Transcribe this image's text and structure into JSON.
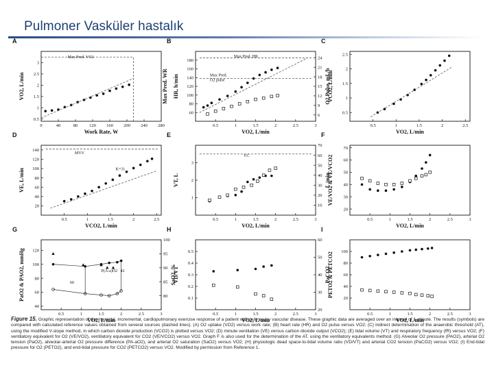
{
  "slide_title": "Pulmoner Vasküler hastalık",
  "caption": {
    "figure_label": "Figure 15.",
    "text": "Graphic representation of the maximal, incremental, cardiopulmonary exercise response of a patient with pulmonary vascular disease. These graphic data are averaged over an interval of 1 minute. The results (symbols) are compared with calculated reference values obtained from several sources (dashed lines). (A) O2 uptake (VO2) versus work rate; (B) heart rate (HR) and O2 pulse versus VO2; (C) indirect determination of the anaerobic threshold (AT), using the modified V-slope method, in which carbon dioxide production (VCO2) is plotted versus VO2; (D) minute ventilation (VE) versus carbon dioxide output (VCO2); (E) tidal volume (VT) and respiratory frequency (fR) versus VO2; (F) ventilatory equivalent for O2 (VE/VO2), ventilatory equivalent for CO2 (VE/VCO2) versus VO2. Graph F is also used for the determination of the AT, using the ventilatory equivalents method. (G) Alveolar O2 pressure (PAO2), arterial O2 tension (PaO2), alveolar-arterial O2 pressure difference (PA-aO2), and arterial O2 saturation (SaO2) versus VO2; (H) physiologic dead space-to-tidal volume ratio (VD/VT) and arterial CO2 tension (PaCO2) versus VO2; (I) End-tidal pressure for O2 (PETO2), and end-tidal pressure for CO2 (PETCO2) versus VO2. Modified by permission from Reference 1."
  },
  "colors": {
    "title": "#1d3f73",
    "ink": "#111111",
    "dash": "#555555"
  },
  "chart_data": [
    {
      "id": "A",
      "letter": "A",
      "type": "scatter",
      "xlabel": "Work Rate, W",
      "ylabel": "VO2, L/min",
      "y2label": "Max Pred. WR",
      "xlim": [
        0,
        280
      ],
      "ylim": [
        0.4,
        3.5
      ],
      "x_ticks": [
        0,
        40,
        80,
        120,
        160,
        200,
        240,
        280
      ],
      "y_ticks": [
        0.5,
        1.0,
        1.5,
        2.0,
        2.5,
        3.0
      ],
      "annotations": [
        {
          "text": "Max Pred. VO2"
        }
      ],
      "series": [
        {
          "name": "VO2",
          "marker": "filled-circle",
          "x": [
            10,
            25,
            40,
            55,
            70,
            85,
            100,
            115,
            130,
            145,
            160,
            175,
            190,
            205
          ],
          "y": [
            0.85,
            0.88,
            0.92,
            1.03,
            1.12,
            1.25,
            1.35,
            1.45,
            1.55,
            1.62,
            1.75,
            1.85,
            1.93,
            2.02
          ]
        },
        {
          "name": "Reference",
          "style": "dashed",
          "x": [
            0,
            215
          ],
          "y": [
            0.55,
            2.3
          ]
        },
        {
          "name": "Max Pred. VO2",
          "style": "dashed",
          "x": [
            0,
            215
          ],
          "y": [
            3.25,
            3.25
          ]
        },
        {
          "name": "Max Pred. WR",
          "style": "dashed",
          "x": [
            215,
            215
          ],
          "y": [
            0.4,
            3.25
          ]
        }
      ]
    },
    {
      "id": "B",
      "letter": "B",
      "type": "scatter",
      "xlabel": "VO2, L/min",
      "ylabel": "HR, b/min",
      "y2label": "O2 Pulse, mL/b",
      "xlim": [
        0,
        3.0
      ],
      "ylim": [
        40,
        200
      ],
      "y2lim": [
        4,
        26
      ],
      "x_ticks": [
        0.5,
        1.0,
        1.5,
        2.0,
        2.5,
        3.0
      ],
      "y_ticks": [
        60,
        80,
        100,
        120,
        140,
        160,
        180
      ],
      "y2_ticks": [
        6,
        9,
        12,
        15,
        18,
        21,
        24
      ],
      "annotations": [
        {
          "text": "Max Pred. HR"
        },
        {
          "text": "Max Pred."
        },
        {
          "text": "O2 pulse"
        }
      ],
      "series": [
        {
          "name": "HR",
          "marker": "filled-circle",
          "x": [
            0.2,
            0.3,
            0.4,
            0.6,
            0.8,
            1.0,
            1.15,
            1.3,
            1.45,
            1.6,
            1.75,
            1.9,
            2.05
          ],
          "y": [
            72,
            76,
            82,
            90,
            98,
            108,
            118,
            128,
            138,
            146,
            152,
            158,
            162
          ]
        },
        {
          "name": "O2 pulse",
          "marker": "open-square",
          "axis": "y2",
          "x": [
            0.3,
            0.5,
            0.7,
            0.9,
            1.1,
            1.3,
            1.5,
            1.7,
            1.9,
            2.05
          ],
          "y": [
            6.3,
            7.2,
            8.0,
            8.7,
            9.5,
            10.2,
            10.9,
            11.3,
            11.8,
            12.1
          ]
        },
        {
          "name": "HR reference",
          "style": "dashed",
          "x": [
            0.1,
            2.8
          ],
          "y": [
            60,
            185
          ]
        },
        {
          "name": "Max Pred. HR",
          "style": "dashed",
          "x": [
            0.1,
            2.9
          ],
          "y": [
            185,
            185
          ]
        },
        {
          "name": "Max Pred. O2 pulse",
          "style": "dashed",
          "axis": "y2",
          "x": [
            0.1,
            2.9
          ],
          "y": [
            17.5,
            17.5
          ]
        }
      ]
    },
    {
      "id": "C",
      "letter": "C",
      "type": "scatter",
      "xlabel": "VO2, L/min",
      "ylabel": "VCO2, L/min",
      "xlim": [
        0,
        2.6
      ],
      "ylim": [
        0.2,
        2.6
      ],
      "x_ticks": [
        0.5,
        1.0,
        1.5,
        2.0,
        2.5
      ],
      "y_ticks": [
        0.5,
        1.0,
        1.5,
        2.0,
        2.5
      ],
      "series": [
        {
          "name": "VCO2",
          "marker": "filled-circle",
          "x": [
            0.6,
            0.75,
            0.95,
            1.1,
            1.25,
            1.4,
            1.55,
            1.65,
            1.75,
            1.85,
            1.95,
            2.05,
            2.15
          ],
          "y": [
            0.5,
            0.62,
            0.8,
            0.95,
            1.1,
            1.28,
            1.48,
            1.62,
            1.78,
            1.95,
            2.12,
            2.28,
            2.45
          ]
        },
        {
          "name": "Slope reference",
          "style": "dashed",
          "x": [
            0.45,
            2.2
          ],
          "y": [
            0.35,
            2.05
          ]
        }
      ]
    },
    {
      "id": "D",
      "letter": "D",
      "type": "scatter",
      "xlabel": "VCO2, L/min",
      "ylabel": "VE, L/min",
      "xlim": [
        0,
        2.6
      ],
      "ylim": [
        0,
        150
      ],
      "x_ticks": [
        0.5,
        1.0,
        1.5,
        2.0,
        2.5
      ],
      "y_ticks": [
        20,
        40,
        60,
        80,
        100,
        120,
        140
      ],
      "annotations": [
        {
          "text": "MVV"
        },
        {
          "text": "K=31"
        }
      ],
      "series": [
        {
          "name": "VE",
          "marker": "filled-circle",
          "x": [
            0.5,
            0.65,
            0.8,
            0.95,
            1.1,
            1.25,
            1.4,
            1.55,
            1.7,
            1.85,
            2.0,
            2.15,
            2.3,
            2.4
          ],
          "y": [
            30,
            34,
            40,
            46,
            52,
            60,
            68,
            76,
            85,
            93,
            101,
            108,
            116,
            121
          ]
        },
        {
          "name": "MVV",
          "style": "dashed",
          "x": [
            0.1,
            2.55
          ],
          "y": [
            142,
            142
          ]
        },
        {
          "name": "Reference slope",
          "style": "dashed",
          "x": [
            0.2,
            2.5
          ],
          "y": [
            15,
            95
          ]
        }
      ]
    },
    {
      "id": "E",
      "letter": "E",
      "type": "scatter",
      "xlabel": "VO2, L/min",
      "ylabel": "VT, L",
      "y2label": "f, /min",
      "xlim": [
        0,
        3.0
      ],
      "ylim": [
        0,
        4.0
      ],
      "y2lim": [
        0,
        70
      ],
      "x_ticks": [
        0.5,
        1.0,
        1.5,
        2.0,
        2.5,
        3.0
      ],
      "y_ticks": [
        1,
        2,
        3
      ],
      "y2_ticks": [
        10,
        20,
        30,
        40,
        50,
        60,
        70
      ],
      "annotations": [
        {
          "text": "VC"
        }
      ],
      "series": [
        {
          "name": "VT",
          "marker": "filled-circle",
          "x": [
            0.35,
            0.6,
            0.8,
            1.0,
            1.15,
            1.3,
            1.45,
            1.6,
            1.75,
            1.9
          ],
          "y": [
            0.8,
            1.05,
            1.1,
            1.15,
            1.35,
            1.9,
            2.05,
            2.15,
            2.25,
            2.25
          ]
        },
        {
          "name": "f",
          "marker": "open-square",
          "axis": "y2",
          "x": [
            0.35,
            0.6,
            0.8,
            1.0,
            1.2,
            1.4,
            1.55,
            1.7,
            1.85,
            2.0
          ],
          "y": [
            15,
            18,
            20,
            26,
            28,
            30,
            34,
            40,
            45,
            47
          ]
        },
        {
          "name": "VC",
          "style": "dashed",
          "x": [
            0.1,
            2.9
          ],
          "y": [
            3.5,
            3.5
          ]
        }
      ]
    },
    {
      "id": "F",
      "letter": "F",
      "type": "scatter",
      "xlabel": "VO2, L/min",
      "ylabel": "VE/VO2 & VE/VCO2",
      "xlim": [
        0,
        3.0
      ],
      "ylim": [
        15,
        72
      ],
      "x_ticks": [
        0.5,
        1.0,
        1.5,
        2.0,
        2.5,
        3.0
      ],
      "y_ticks": [
        20,
        30,
        40,
        50,
        60,
        70
      ],
      "series": [
        {
          "name": "VE/VO2",
          "marker": "filled-circle",
          "x": [
            0.3,
            0.5,
            0.7,
            0.9,
            1.1,
            1.3,
            1.5,
            1.65,
            1.8,
            1.9,
            2.0
          ],
          "y": [
            40,
            36,
            35,
            35,
            36,
            38,
            42,
            47,
            53,
            58,
            64
          ]
        },
        {
          "name": "VE/VCO2",
          "marker": "open-square",
          "x": [
            0.3,
            0.5,
            0.7,
            0.9,
            1.1,
            1.3,
            1.5,
            1.65,
            1.8,
            1.9,
            2.0
          ],
          "y": [
            45,
            43,
            41,
            40,
            40,
            41,
            43,
            45,
            47,
            48,
            50
          ]
        }
      ]
    },
    {
      "id": "G",
      "letter": "G",
      "type": "scatter",
      "xlabel": "VO2, L/min",
      "ylabel": "PaO2 & PAO2, mmHg",
      "y2label": "SaO2, %",
      "xlim": [
        0,
        3.0
      ],
      "ylim": [
        35,
        135
      ],
      "y2lim": [
        75,
        100
      ],
      "x_ticks": [
        0.5,
        1.0,
        1.5,
        2.0,
        2.5,
        3.0
      ],
      "y_ticks": [
        40,
        60,
        80,
        100,
        120
      ],
      "y2_ticks": [
        80,
        85,
        90,
        95,
        100
      ],
      "annotations": [
        {
          "text": "P(A-a)O2"
        },
        {
          "text": "60"
        },
        {
          "text": "42"
        }
      ],
      "series": [
        {
          "name": "SaO2",
          "marker": "filled-triangle",
          "axis": "y2",
          "x": [
            0.3,
            1.05,
            1.5,
            1.65,
            1.8
          ],
          "y": [
            95,
            91,
            91,
            90,
            90
          ]
        },
        {
          "name": "PAO2",
          "marker": "filled-circle",
          "x": [
            0.3,
            1.1,
            1.5,
            1.7,
            1.9,
            2.0
          ],
          "y": [
            100,
            97,
            100,
            102,
            103,
            105
          ]
        },
        {
          "name": "PaO2",
          "marker": "open-circle",
          "x": [
            0.3,
            1.1,
            1.5,
            1.7,
            1.9,
            2.0
          ],
          "y": [
            64,
            58,
            56,
            55,
            58,
            62
          ]
        }
      ]
    },
    {
      "id": "H",
      "letter": "H",
      "type": "scatter",
      "xlabel": "VO2, L/min",
      "ylabel": "VD/VT",
      "y2label": "PaCO2",
      "xlim": [
        0,
        3.0
      ],
      "ylim": [
        0,
        0.6
      ],
      "y2lim": [
        20,
        60
      ],
      "x_ticks": [
        0.5,
        1.0,
        1.5,
        2.0,
        2.5,
        3.0
      ],
      "y_ticks": [
        0.1,
        0.2,
        0.3,
        0.4,
        0.5
      ],
      "y2_ticks": [
        20,
        30,
        40,
        50,
        60
      ],
      "series": [
        {
          "name": "VD/VT",
          "marker": "filled-circle",
          "x": [
            0.45,
            1.05,
            1.5,
            1.7,
            1.9
          ],
          "y": [
            0.33,
            0.34,
            0.35,
            0.37,
            0.38
          ]
        },
        {
          "name": "PaCO2",
          "marker": "open-square",
          "axis": "y2",
          "x": [
            0.45,
            1.05,
            1.5,
            1.7,
            1.9
          ],
          "y": [
            34,
            33,
            29,
            28,
            26
          ]
        }
      ]
    },
    {
      "id": "I",
      "letter": "I",
      "type": "scatter",
      "xlabel": "VO2, L/min",
      "ylabel": "PETO2 & PETCO2",
      "xlim": [
        0,
        3.0
      ],
      "ylim": [
        0,
        120
      ],
      "x_ticks": [
        0.5,
        1.0,
        1.5,
        2.0,
        2.5,
        3.0
      ],
      "y_ticks": [
        20,
        40,
        60,
        80,
        100
      ],
      "series": [
        {
          "name": "PETO2",
          "marker": "filled-circle",
          "x": [
            0.3,
            0.5,
            0.7,
            0.9,
            1.1,
            1.3,
            1.5,
            1.65,
            1.8,
            1.95,
            2.05
          ],
          "y": [
            90,
            92,
            94,
            96,
            98,
            100,
            102,
            103,
            104,
            105,
            106
          ]
        },
        {
          "name": "PETCO2",
          "marker": "open-square",
          "x": [
            0.3,
            0.5,
            0.7,
            0.9,
            1.1,
            1.3,
            1.5,
            1.65,
            1.8,
            1.95,
            2.05
          ],
          "y": [
            34,
            33,
            32,
            31,
            30,
            29,
            28,
            26,
            25,
            24,
            23
          ]
        }
      ]
    }
  ]
}
